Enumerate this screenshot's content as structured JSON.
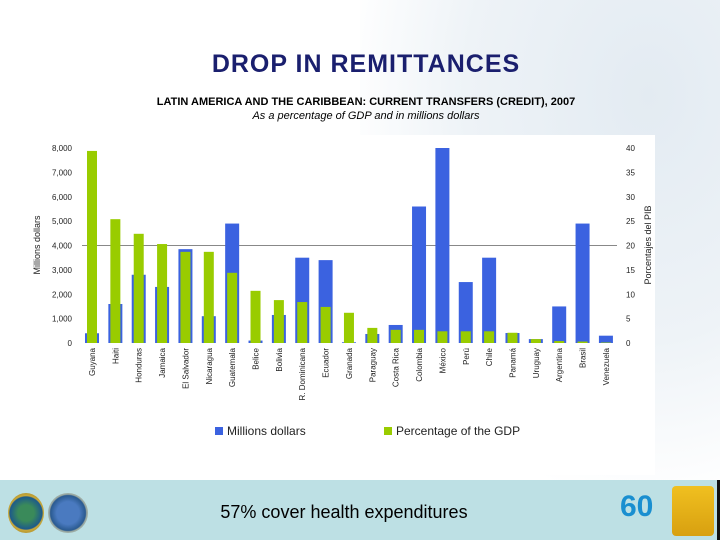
{
  "slide": {
    "title": "DROP IN REMITTANCES",
    "footer_text": "57% cover health expenditures",
    "footer_logos": [
      "paho-emblem",
      "who-emblem",
      "60-anniversary-logo",
      "2030-logo"
    ]
  },
  "colors": {
    "millions": "#3b62e0",
    "percent": "#99cc00",
    "band": "#bde0e4",
    "title": "#1a1f6e"
  },
  "chart_data": {
    "type": "bar",
    "title": "LATIN AMERICA AND THE CARIBBEAN: CURRENT TRANSFERS (CREDIT), 2007",
    "subtitle": "As a percentage of  GDP and in millions dollars",
    "ylabel": "Millions dollars",
    "y2label": "Porcentajes del PIB",
    "ylim": [
      0,
      8000
    ],
    "y2lim": [
      0,
      40
    ],
    "yticks": [
      "0",
      "1,000",
      "2,000",
      "3,000",
      "4,000",
      "5,000",
      "6,000",
      "7,000",
      "8,000"
    ],
    "y2ticks": [
      "0",
      "5",
      "10",
      "15",
      "20",
      "25",
      "30",
      "35",
      "40"
    ],
    "grid": false,
    "reference_line": 4000,
    "legend_position": "bottom",
    "categories": [
      "Guyana",
      "Haiti",
      "Honduras",
      "Jamaica",
      "El Salvador",
      "Nicaragua",
      "Guatemala",
      "Belice",
      "Bolivia",
      "R. Dominicana",
      "Ecuador",
      "Granada",
      "Paraguay",
      "Costa Rica",
      "Colombia",
      "México",
      "Perú",
      "Chile",
      "Panamá",
      "Uruguay",
      "Argentina",
      "Brasil",
      "Venezuela"
    ],
    "series": [
      {
        "name": "Millions dollars",
        "axis": "left",
        "values": [
          400,
          1600,
          2800,
          2300,
          3850,
          1100,
          4900,
          100,
          1150,
          3500,
          3400,
          30,
          370,
          740,
          5600,
          8000,
          2500,
          3500,
          410,
          160,
          1500,
          4900,
          300
        ]
      },
      {
        "name": "Percentage of the GDP",
        "axis": "right",
        "values": [
          39.4,
          25.4,
          22.4,
          20.3,
          18.7,
          18.7,
          14.4,
          10.7,
          8.8,
          8.4,
          7.4,
          6.2,
          3.1,
          2.7,
          2.7,
          2.4,
          2.4,
          2.4,
          2.1,
          0.8,
          0.4,
          0.3,
          0.1
        ]
      }
    ]
  }
}
